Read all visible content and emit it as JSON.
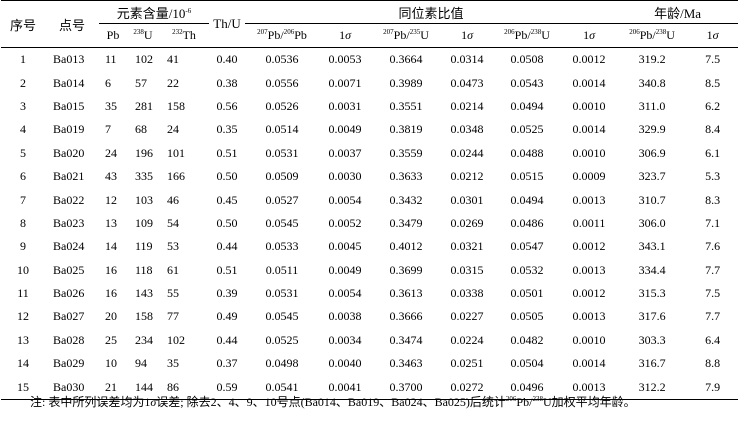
{
  "table": {
    "headers": {
      "seq": "序号",
      "point": "点号",
      "element_content": "元素含量/10",
      "element_content_exp": "-6",
      "thu": "Th/U",
      "isotope_ratio": "同位素比值",
      "age": "年龄/Ma"
    },
    "subheaders": {
      "pb": "Pb",
      "u238_mass": "238",
      "u238_el": "U",
      "th232_mass": "232",
      "th232_el": "Th",
      "r1_m1": "207",
      "r1_e1": "Pb",
      "r1_m2": "206",
      "r1_e2": "Pb",
      "r2_m1": "207",
      "r2_e1": "Pb",
      "r2_m2": "235",
      "r2_e2": "U",
      "r3_m1": "206",
      "r3_e1": "Pb",
      "r3_m2": "238",
      "r3_e2": "U",
      "sigma_num": "1",
      "sigma_sym": "σ"
    },
    "rows": [
      [
        "1",
        "Ba013",
        "11",
        "102",
        "41",
        "0.40",
        "0.0536",
        "0.0053",
        "0.3664",
        "0.0314",
        "0.0508",
        "0.0012",
        "319.2",
        "7.5"
      ],
      [
        "2",
        "Ba014",
        "6",
        "57",
        "22",
        "0.38",
        "0.0556",
        "0.0071",
        "0.3989",
        "0.0473",
        "0.0543",
        "0.0014",
        "340.8",
        "8.5"
      ],
      [
        "3",
        "Ba015",
        "35",
        "281",
        "158",
        "0.56",
        "0.0526",
        "0.0031",
        "0.3551",
        "0.0214",
        "0.0494",
        "0.0010",
        "311.0",
        "6.2"
      ],
      [
        "4",
        "Ba019",
        "7",
        "68",
        "24",
        "0.35",
        "0.0514",
        "0.0049",
        "0.3819",
        "0.0348",
        "0.0525",
        "0.0014",
        "329.9",
        "8.4"
      ],
      [
        "5",
        "Ba020",
        "24",
        "196",
        "101",
        "0.51",
        "0.0531",
        "0.0037",
        "0.3559",
        "0.0244",
        "0.0488",
        "0.0010",
        "306.9",
        "6.1"
      ],
      [
        "6",
        "Ba021",
        "43",
        "335",
        "166",
        "0.50",
        "0.0509",
        "0.0030",
        "0.3633",
        "0.0212",
        "0.0515",
        "0.0009",
        "323.7",
        "5.3"
      ],
      [
        "7",
        "Ba022",
        "12",
        "103",
        "46",
        "0.45",
        "0.0527",
        "0.0054",
        "0.3432",
        "0.0301",
        "0.0494",
        "0.0013",
        "310.7",
        "8.3"
      ],
      [
        "8",
        "Ba023",
        "13",
        "109",
        "54",
        "0.50",
        "0.0545",
        "0.0052",
        "0.3479",
        "0.0269",
        "0.0486",
        "0.0011",
        "306.0",
        "7.1"
      ],
      [
        "9",
        "Ba024",
        "14",
        "119",
        "53",
        "0.44",
        "0.0533",
        "0.0045",
        "0.4012",
        "0.0321",
        "0.0547",
        "0.0012",
        "343.1",
        "7.6"
      ],
      [
        "10",
        "Ba025",
        "16",
        "118",
        "61",
        "0.51",
        "0.0511",
        "0.0049",
        "0.3699",
        "0.0315",
        "0.0532",
        "0.0013",
        "334.4",
        "7.7"
      ],
      [
        "11",
        "Ba026",
        "16",
        "143",
        "55",
        "0.39",
        "0.0531",
        "0.0054",
        "0.3613",
        "0.0338",
        "0.0501",
        "0.0012",
        "315.3",
        "7.5"
      ],
      [
        "12",
        "Ba027",
        "20",
        "158",
        "77",
        "0.49",
        "0.0545",
        "0.0038",
        "0.3666",
        "0.0227",
        "0.0505",
        "0.0013",
        "317.6",
        "7.7"
      ],
      [
        "13",
        "Ba028",
        "25",
        "234",
        "102",
        "0.44",
        "0.0525",
        "0.0034",
        "0.3474",
        "0.0224",
        "0.0482",
        "0.0010",
        "303.3",
        "6.4"
      ],
      [
        "14",
        "Ba029",
        "10",
        "94",
        "35",
        "0.37",
        "0.0498",
        "0.0040",
        "0.3463",
        "0.0251",
        "0.0504",
        "0.0014",
        "316.7",
        "8.8"
      ],
      [
        "15",
        "Ba030",
        "21",
        "144",
        "86",
        "0.59",
        "0.0541",
        "0.0041",
        "0.3700",
        "0.0272",
        "0.0496",
        "0.0013",
        "312.2",
        "7.9"
      ]
    ]
  },
  "note": {
    "prefix": "注: 表中所列误差均为1",
    "sigma": "σ",
    "middle": "误差; 除去2、4、9、10号点(Ba014、Ba019、Ba024、Ba025)后统计",
    "m1": "206",
    "e1": "Pb",
    "m2": "238",
    "e2": "U",
    "suffix": "U加权平均年龄。"
  }
}
